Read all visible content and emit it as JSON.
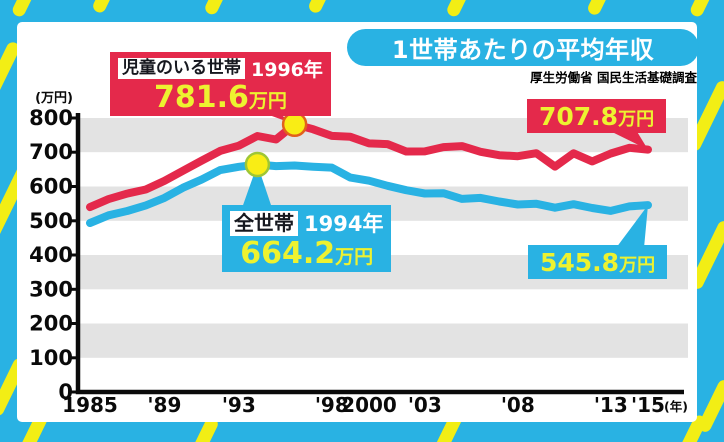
{
  "title": "1世帯あたりの平均年収",
  "source": "厚生労働省 国民生活基礎調査",
  "colors": {
    "cyan": "#29b2e3",
    "red": "#e4294b",
    "stripe_yellow": "#f2ee15",
    "value_yellow": "#edf230",
    "marker_yellow": "#f9ed15",
    "band_gray": "#e3e3e3",
    "axis_black": "#0a0a0a"
  },
  "chart_data": {
    "type": "line",
    "x_start": 1985,
    "x_end": 2015,
    "unit_label": "(万円)",
    "year_suffix_label": "(年)",
    "ylim": [
      0,
      800
    ],
    "ytick_interval": 100,
    "grid_bands": [
      [
        100,
        200
      ],
      [
        300,
        400
      ],
      [
        500,
        600
      ],
      [
        700,
        800
      ]
    ],
    "x_tick_labels": [
      {
        "year": 1985,
        "label": "1985"
      },
      {
        "year": 1989,
        "label": "'89"
      },
      {
        "year": 1993,
        "label": "'93"
      },
      {
        "year": 1998,
        "label": "'98"
      },
      {
        "year": 2000,
        "label": "2000"
      },
      {
        "year": 2003,
        "label": "'03"
      },
      {
        "year": 2008,
        "label": "'08"
      },
      {
        "year": 2013,
        "label": "'13"
      },
      {
        "year": 2015,
        "label": "'15"
      }
    ],
    "series": [
      {
        "name": "児童のいる世帯",
        "color": "#e4294b",
        "values": [
          539.8,
          563.3,
          579.2,
          591.1,
          616.3,
          646.1,
          675.2,
          703.9,
          719.2,
          747.5,
          737.2,
          781.6,
          767.1,
          747.6,
          745.2,
          725.8,
          723.8,
          702.1,
          702.6,
          714.9,
          718.0,
          701.2,
          691.4,
          688.5,
          697.3,
          658.1,
          697.0,
          673.2,
          696.3,
          712.9,
          707.8
        ]
      },
      {
        "name": "全世帯",
        "color": "#29b2e3",
        "values": [
          493.3,
          515.8,
          528.6,
          544.7,
          566.7,
          596.6,
          620.0,
          647.8,
          657.5,
          664.2,
          659.6,
          661.2,
          657.7,
          655.2,
          626.0,
          616.9,
          602.0,
          589.3,
          579.7,
          580.4,
          563.8,
          566.8,
          556.2,
          547.5,
          549.6,
          538.0,
          548.2,
          537.2,
          528.9,
          541.9,
          545.8
        ]
      }
    ],
    "markers": [
      {
        "series": 0,
        "year": 1996,
        "value": 781.6
      },
      {
        "series": 1,
        "year": 1994,
        "value": 664.2
      }
    ]
  },
  "callouts": {
    "children_peak": {
      "series_label": "児童のいる世帯",
      "year_label": "1996年",
      "value": "781.6",
      "unit": "万円",
      "anchor_year": 1996,
      "anchor_value": 781.6
    },
    "all_peak": {
      "series_label": "全世帯",
      "year_label": "1994年",
      "value": "664.2",
      "unit": "万円",
      "anchor_year": 1994,
      "anchor_value": 664.2
    },
    "children_latest": {
      "value": "707.8",
      "unit": "万円",
      "anchor_year": 2015,
      "anchor_value": 707.8
    },
    "all_latest": {
      "value": "545.8",
      "unit": "万円",
      "anchor_year": 2015,
      "anchor_value": 545.8
    }
  }
}
